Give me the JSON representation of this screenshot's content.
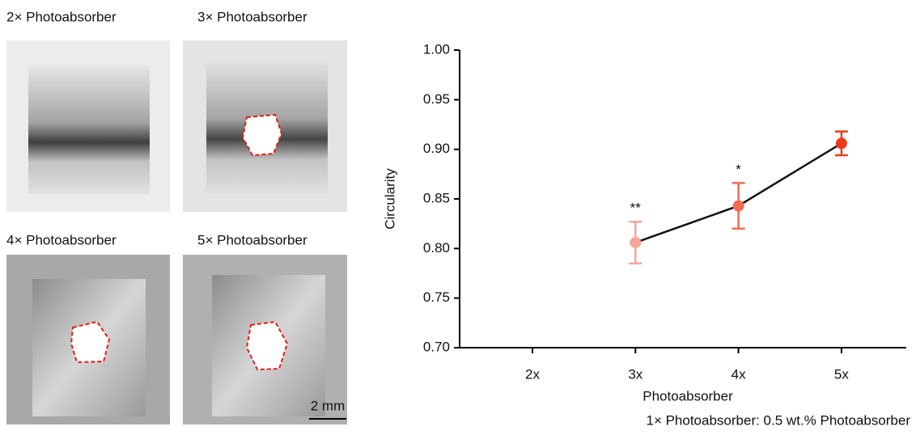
{
  "panels": [
    {
      "label": "2× Photoabsorber"
    },
    {
      "label": "3× Photoabsorber"
    },
    {
      "label": "4× Photoabsorber"
    },
    {
      "label": "5× Photoabsorber"
    }
  ],
  "scale_bar": "2 mm",
  "chart_data": {
    "type": "line",
    "xlabel": "Photoabsorber",
    "ylabel": "Circularity",
    "note": "1× Photoabsorber: 0.5 wt.% Photoabsorber",
    "categories": [
      "2x",
      "3x",
      "4x",
      "5x"
    ],
    "values": [
      null,
      0.806,
      0.843,
      0.906
    ],
    "errors": [
      null,
      0.021,
      0.023,
      0.012
    ],
    "annotations": [
      null,
      "**",
      "*",
      null
    ],
    "colors": [
      null,
      "#f4a69a",
      "#f26b52",
      "#ee3a1c"
    ],
    "line_color": "#111111",
    "ylim": [
      0.7,
      1.0
    ],
    "yticks": [
      {
        "value": 0.7,
        "label": "0.70"
      },
      0.75,
      {
        "value": 0.8,
        "label": "0.80"
      },
      0.85,
      {
        "value": 0.9,
        "label": "0.90"
      },
      0.95,
      {
        "value": 1.0,
        "label": "1.00"
      }
    ]
  }
}
